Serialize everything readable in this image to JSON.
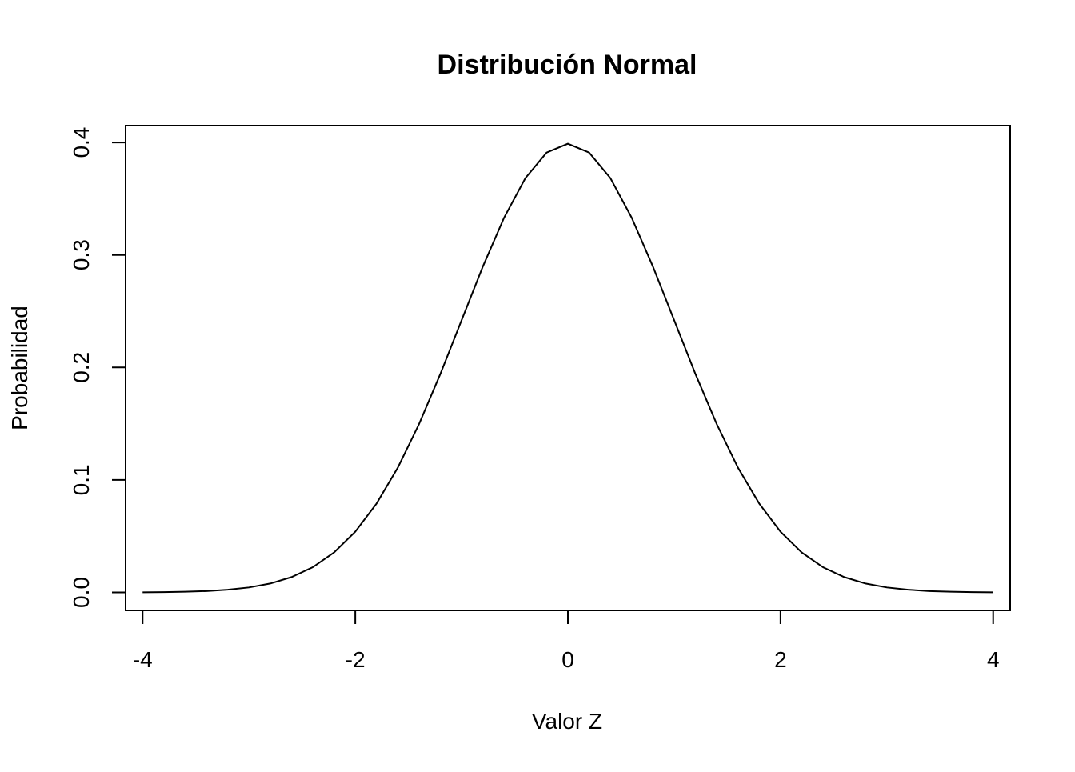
{
  "chart_data": {
    "type": "line",
    "title": "Distribución Normal",
    "xlabel": "Valor Z",
    "ylabel": "Probabilidad",
    "xlim": [
      -4.16,
      4.16
    ],
    "ylim": [
      -0.016,
      0.415
    ],
    "x_ticks": [
      {
        "value": -4,
        "label": "-4"
      },
      {
        "value": -2,
        "label": "-2"
      },
      {
        "value": 0,
        "label": "0"
      },
      {
        "value": 2,
        "label": "2"
      },
      {
        "value": 4,
        "label": "4"
      }
    ],
    "y_ticks": [
      {
        "value": 0.0,
        "label": "0.0"
      },
      {
        "value": 0.1,
        "label": "0.1"
      },
      {
        "value": 0.2,
        "label": "0.2"
      },
      {
        "value": 0.3,
        "label": "0.3"
      },
      {
        "value": 0.4,
        "label": "0.4"
      }
    ],
    "grid": false,
    "legend": "none",
    "line_color": "#000000",
    "series": [
      {
        "x": [
          -4.0,
          -3.8,
          -3.6,
          -3.4,
          -3.2,
          -3.0,
          -2.8,
          -2.6,
          -2.4,
          -2.2,
          -2.0,
          -1.8,
          -1.6,
          -1.4,
          -1.2,
          -1.0,
          -0.8,
          -0.6,
          -0.4,
          -0.2,
          0.0,
          0.2,
          0.4,
          0.6,
          0.8,
          1.0,
          1.2,
          1.4,
          1.6,
          1.8,
          2.0,
          2.2,
          2.4,
          2.6,
          2.8,
          3.0,
          3.2,
          3.4,
          3.6,
          3.8,
          4.0
        ],
        "values": [
          0.0001,
          0.0003,
          0.0006,
          0.0012,
          0.0024,
          0.0044,
          0.0079,
          0.0136,
          0.0224,
          0.0355,
          0.054,
          0.079,
          0.1109,
          0.1497,
          0.1942,
          0.242,
          0.2897,
          0.3332,
          0.3683,
          0.391,
          0.3989,
          0.391,
          0.3683,
          0.3332,
          0.2897,
          0.242,
          0.1942,
          0.1497,
          0.1109,
          0.079,
          0.054,
          0.0355,
          0.0224,
          0.0136,
          0.0079,
          0.0044,
          0.0024,
          0.0012,
          0.0006,
          0.0003,
          0.0001
        ]
      }
    ]
  }
}
